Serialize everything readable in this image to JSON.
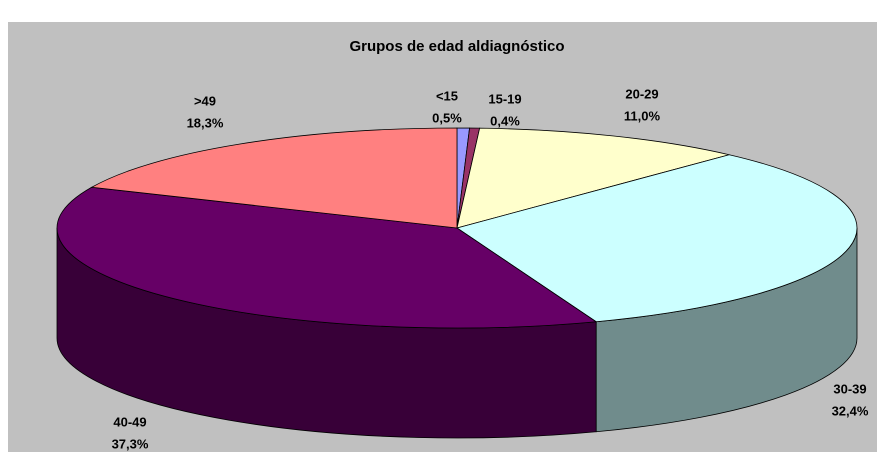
{
  "chart_data": {
    "type": "pie",
    "title": "Grupos de edad aldiagnóstico",
    "categories": [
      "<15",
      "15-19",
      "20-29",
      "30-39",
      "40-49",
      ">49"
    ],
    "values": [
      0.5,
      0.4,
      11.0,
      32.4,
      37.3,
      18.3
    ],
    "value_labels": [
      "0,5%",
      "0,4%",
      "11,0%",
      "32,4%",
      "37,3%",
      "18,3%"
    ],
    "colors": [
      "#9999ff",
      "#993366",
      "#ffffcc",
      "#ccffff",
      "#660066",
      "#ff8080"
    ]
  }
}
